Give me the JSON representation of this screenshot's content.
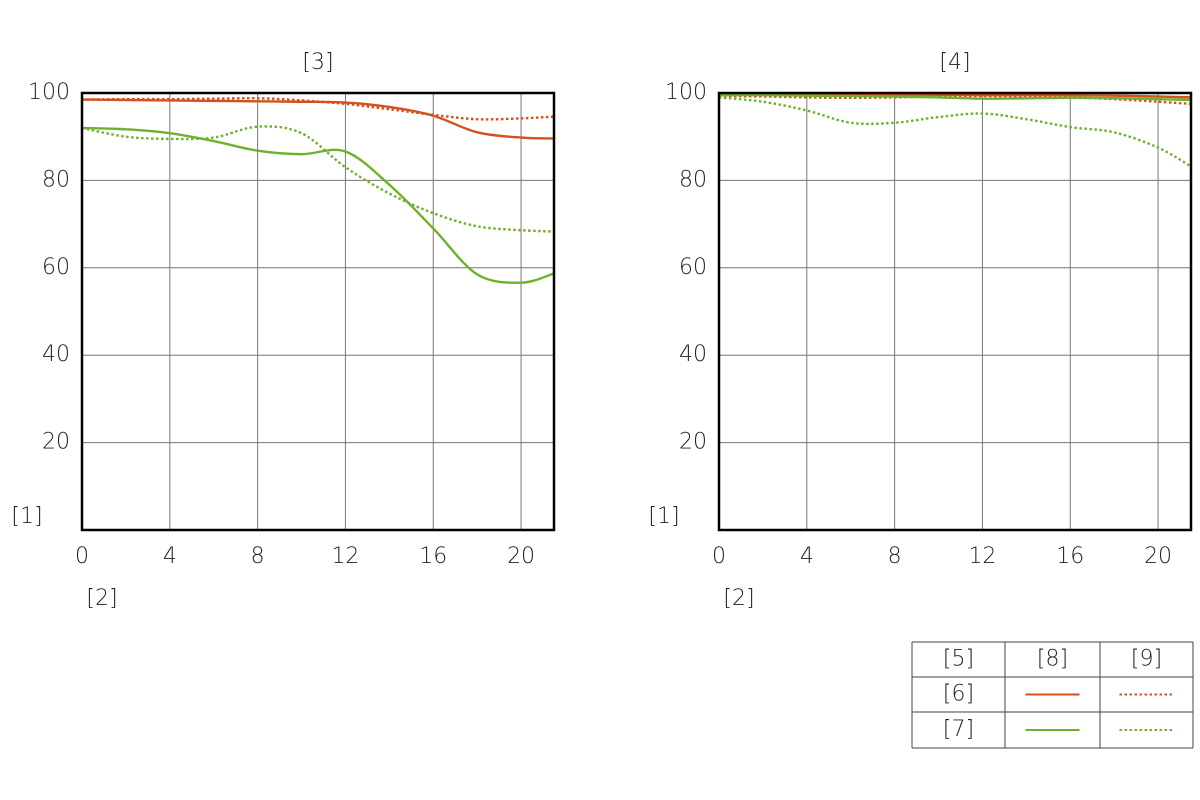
{
  "chart_data": [
    {
      "type": "line",
      "title": "[3]",
      "x_label": "[2]",
      "y_label": "[1]",
      "x": [
        0,
        2,
        4,
        6,
        8,
        10,
        12,
        14,
        16,
        18,
        20,
        21.5
      ],
      "xlim": [
        0,
        21.5
      ],
      "ylim": [
        0,
        100
      ],
      "xticks": [
        0,
        4,
        8,
        12,
        16,
        20
      ],
      "yticks": [
        20,
        40,
        60,
        80,
        100
      ],
      "grid": true,
      "series": [
        {
          "color": "#d4501c",
          "style": "solid",
          "values": [
            98.5,
            98.4,
            98.3,
            98.2,
            98.1,
            98,
            97.8,
            96.8,
            94.8,
            91,
            89.8,
            89.6
          ]
        },
        {
          "color": "#d4501c",
          "style": "dotted",
          "values": [
            98.5,
            98.6,
            98.6,
            98.7,
            98.8,
            98.3,
            97.5,
            96.3,
            95,
            94,
            94.2,
            94.6
          ]
        },
        {
          "color": "#6fb02c",
          "style": "solid",
          "values": [
            92,
            91.7,
            90.8,
            89,
            86.8,
            86,
            86.6,
            79,
            69,
            58.5,
            56.6,
            58.7
          ]
        },
        {
          "color": "#6fb02c",
          "style": "dotted",
          "values": [
            92,
            90,
            89.5,
            89.8,
            92.3,
            90.8,
            83,
            77,
            72.5,
            69.5,
            68.6,
            68.3
          ]
        }
      ]
    },
    {
      "type": "line",
      "title": "[4]",
      "x_label": "[2]",
      "y_label": "[1]",
      "x": [
        0,
        2,
        4,
        6,
        8,
        10,
        12,
        14,
        16,
        18,
        20,
        21.5
      ],
      "xlim": [
        0,
        21.5
      ],
      "ylim": [
        0,
        100
      ],
      "xticks": [
        0,
        4,
        8,
        12,
        16,
        20
      ],
      "yticks": [
        20,
        40,
        60,
        80,
        100
      ],
      "grid": true,
      "series": [
        {
          "color": "#d4501c",
          "style": "solid",
          "values": [
            99.7,
            99.7,
            99.6,
            99.6,
            99.6,
            99.6,
            99.5,
            99.5,
            99.5,
            99.4,
            99.2,
            99
          ]
        },
        {
          "color": "#d4501c",
          "style": "dotted",
          "values": [
            99.3,
            99.2,
            99,
            98.9,
            99,
            99.2,
            99.3,
            99.2,
            99,
            98.6,
            98,
            97.5
          ]
        },
        {
          "color": "#6fb02c",
          "style": "solid",
          "values": [
            99.5,
            99.5,
            99.4,
            99.3,
            99.2,
            99,
            98.7,
            98.8,
            98.9,
            98.8,
            98.6,
            98.4
          ]
        },
        {
          "color": "#6fb02c",
          "style": "dotted",
          "values": [
            99,
            98,
            96,
            93.2,
            93.2,
            94.5,
            95.3,
            94,
            92.2,
            91,
            87.5,
            83.2
          ]
        }
      ]
    }
  ],
  "legend": {
    "header": "[5]",
    "columns": [
      "[8]",
      "[9]"
    ],
    "column_styles": [
      "solid",
      "dotted"
    ],
    "rows": [
      "[6]",
      "[7]"
    ],
    "row_colors": [
      "#d4501c",
      "#6fb02c"
    ]
  }
}
